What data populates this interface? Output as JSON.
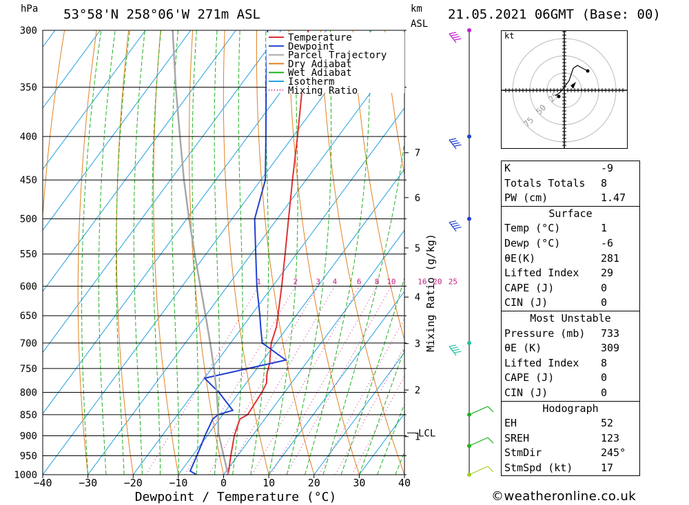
{
  "header": {
    "location": "53°58'N  258°06'W  271m  ASL",
    "datetime": "21.05.2021  06GMT  (Base: 00)",
    "hpa_label": "hPa",
    "km_label": "km",
    "asl_label": "ASL"
  },
  "chart_data": {
    "type": "line",
    "xlabel": "Dewpoint / Temperature (°C)",
    "ylabel_right": "Mixing Ratio (g/kg)",
    "xlim": [
      -40,
      40
    ],
    "ylim_hpa": [
      1000,
      300
    ],
    "skew": 1.2,
    "pressure_levels": [
      300,
      350,
      400,
      450,
      500,
      550,
      600,
      650,
      700,
      750,
      800,
      850,
      900,
      950,
      1000
    ],
    "x_ticks": [
      -40,
      -30,
      -20,
      -10,
      0,
      10,
      20,
      30,
      40
    ],
    "km_ticks": [
      {
        "km": "7",
        "p": 418
      },
      {
        "km": "6",
        "p": 472
      },
      {
        "km": "5",
        "p": 541
      },
      {
        "km": "4",
        "p": 618
      },
      {
        "km": "3",
        "p": 701
      },
      {
        "km": "2",
        "p": 795
      },
      {
        "km": "1",
        "p": 902
      }
    ],
    "lcl": {
      "label": "LCL",
      "p": 893
    },
    "mixing_ratio_labels": [
      "1",
      "2",
      "3",
      "4",
      "6",
      "8",
      "10",
      "16",
      "20",
      "25"
    ],
    "mixing_ratio_values": [
      1,
      2,
      3,
      4,
      6,
      8,
      10,
      16,
      20,
      25
    ],
    "legend": [
      "Temperature",
      "Dewpoint",
      "Parcel Trajectory",
      "Dry Adiabat",
      "Wet Adiabat",
      "Isotherm",
      "Mixing Ratio"
    ],
    "colors": {
      "temperature": "#e03030",
      "dewpoint": "#2040d0",
      "parcel": "#a8a8a8",
      "dry_adiabat": "#e08020",
      "wet_adiabat": "#20b020",
      "isotherm": "#20a0e0",
      "mixing_ratio": "#c02080"
    },
    "series": [
      {
        "name": "Temperature",
        "points": [
          {
            "p": 1000,
            "t": 1.0
          },
          {
            "p": 950,
            "t": -1.5
          },
          {
            "p": 900,
            "t": -4.0
          },
          {
            "p": 860,
            "t": -5.5
          },
          {
            "p": 850,
            "t": -4.5
          },
          {
            "p": 800,
            "t": -5.0
          },
          {
            "p": 780,
            "t": -5.5
          },
          {
            "p": 760,
            "t": -7.0
          },
          {
            "p": 740,
            "t": -8.0
          },
          {
            "p": 720,
            "t": -9.5
          },
          {
            "p": 700,
            "t": -11.0
          },
          {
            "p": 670,
            "t": -12.5
          },
          {
            "p": 650,
            "t": -14.0
          },
          {
            "p": 600,
            "t": -18.0
          },
          {
            "p": 550,
            "t": -22.5
          },
          {
            "p": 500,
            "t": -27.5
          },
          {
            "p": 450,
            "t": -33.0
          },
          {
            "p": 400,
            "t": -39.0
          },
          {
            "p": 350,
            "t": -46.0
          },
          {
            "p": 300,
            "t": -54.0
          }
        ]
      },
      {
        "name": "Dewpoint",
        "points": [
          {
            "p": 1000,
            "t": -6.0
          },
          {
            "p": 990,
            "t": -8.0
          },
          {
            "p": 950,
            "t": -9.0
          },
          {
            "p": 900,
            "t": -10.5
          },
          {
            "p": 860,
            "t": -11.5
          },
          {
            "p": 850,
            "t": -11.0
          },
          {
            "p": 840,
            "t": -8.5
          },
          {
            "p": 800,
            "t": -14.5
          },
          {
            "p": 770,
            "t": -20.0
          },
          {
            "p": 733,
            "t": -5.0
          },
          {
            "p": 700,
            "t": -13.0
          },
          {
            "p": 670,
            "t": -16.0
          },
          {
            "p": 650,
            "t": -18.0
          },
          {
            "p": 600,
            "t": -23.5
          },
          {
            "p": 550,
            "t": -29.0
          },
          {
            "p": 500,
            "t": -35.0
          },
          {
            "p": 450,
            "t": -39.0
          },
          {
            "p": 400,
            "t": -46.0
          },
          {
            "p": 350,
            "t": -54.0
          },
          {
            "p": 300,
            "t": -63.0
          }
        ]
      },
      {
        "name": "Parcel Trajectory",
        "points": [
          {
            "p": 1000,
            "t": 1.0
          },
          {
            "p": 893,
            "t": -8.0
          },
          {
            "p": 850,
            "t": -11.0
          },
          {
            "p": 800,
            "t": -15.0
          },
          {
            "p": 750,
            "t": -19.5
          },
          {
            "p": 700,
            "t": -24.5
          },
          {
            "p": 650,
            "t": -30.0
          },
          {
            "p": 600,
            "t": -36.0
          },
          {
            "p": 550,
            "t": -42.5
          },
          {
            "p": 500,
            "t": -49.5
          },
          {
            "p": 450,
            "t": -57.0
          },
          {
            "p": 400,
            "t": -65.0
          },
          {
            "p": 350,
            "t": -74.0
          },
          {
            "p": 300,
            "t": -84.0
          }
        ]
      }
    ]
  },
  "hodograph": {
    "unit_label": "kt",
    "ring_labels": [
      "25",
      "50",
      "75"
    ]
  },
  "indices": {
    "rows": [
      {
        "label": "K",
        "value": "-9"
      },
      {
        "label": "Totals Totals",
        "value": "8"
      },
      {
        "label": "PW (cm)",
        "value": "1.47"
      }
    ]
  },
  "surface": {
    "title": "Surface",
    "rows": [
      {
        "label": "Temp (°C)",
        "value": "1"
      },
      {
        "label": "Dewp (°C)",
        "value": "-6"
      },
      {
        "label": "θE(K)",
        "value": "281"
      },
      {
        "label": "Lifted Index",
        "value": "29"
      },
      {
        "label": "CAPE (J)",
        "value": "0"
      },
      {
        "label": "CIN (J)",
        "value": "0"
      }
    ]
  },
  "most_unstable": {
    "title": "Most Unstable",
    "rows": [
      {
        "label": "Pressure (mb)",
        "value": "733"
      },
      {
        "label": "θE (K)",
        "value": "309"
      },
      {
        "label": "Lifted Index",
        "value": "8"
      },
      {
        "label": "CAPE (J)",
        "value": "0"
      },
      {
        "label": "CIN (J)",
        "value": "0"
      }
    ]
  },
  "hodograph_stats": {
    "title": "Hodograph",
    "rows": [
      {
        "label": "EH",
        "value": "52"
      },
      {
        "label": "SREH",
        "value": "123"
      },
      {
        "label": "StmDir",
        "value": "245°"
      },
      {
        "label": "StmSpd (kt)",
        "value": "17"
      }
    ]
  },
  "copyright": "©weatheronline.co.uk"
}
